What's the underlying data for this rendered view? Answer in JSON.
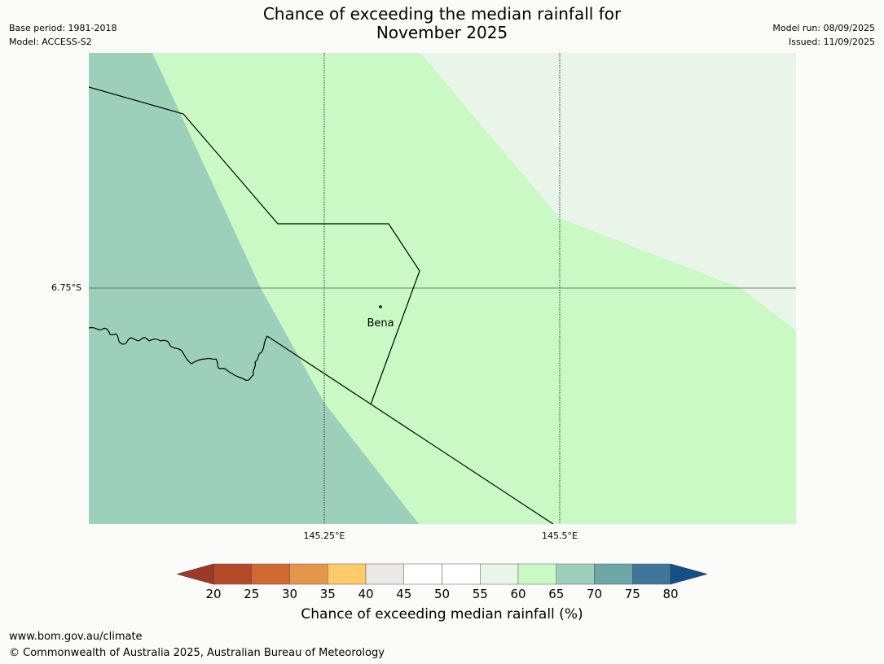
{
  "title": {
    "line1": "Chance of exceeding the median rainfall for",
    "line2": "November 2025"
  },
  "meta_left": {
    "base_period": "Base period: 1981-2018",
    "model": "Model: ACCESS-S2"
  },
  "meta_right": {
    "model_run": "Model run: 08/09/2025",
    "issued": "Issued: 11/09/2025"
  },
  "map": {
    "latitude_labels": [
      "6.75°S"
    ],
    "longitude_labels": [
      "145.25°E",
      "145.5°E"
    ],
    "place": {
      "name": "Bena"
    },
    "regions": [
      {
        "category": "65-70",
        "color": "#9dd0bb"
      },
      {
        "category": "60-65",
        "color": "#caf9c6"
      },
      {
        "category": "55-60",
        "color": "#eaf5ea"
      }
    ]
  },
  "legend": {
    "title": "Chance of exceeding median rainfall (%)",
    "ticks": [
      "20",
      "25",
      "30",
      "35",
      "40",
      "45",
      "50",
      "55",
      "60",
      "65",
      "70",
      "75",
      "80"
    ],
    "under_color": "#9b3a27",
    "over_color": "#144f8a",
    "colors": [
      "#b34a27",
      "#cf6a33",
      "#e4964a",
      "#fecb68",
      "#ebe9e6",
      "#ffffff",
      "#ffffff",
      "#eaf5ea",
      "#caf9c6",
      "#9dd0bb",
      "#6ea5a6",
      "#3f7699"
    ]
  },
  "footer": {
    "url": "www.bom.gov.au/climate",
    "copyright": "© Commonwealth of Australia 2025, Australian Bureau of Meteorology"
  }
}
